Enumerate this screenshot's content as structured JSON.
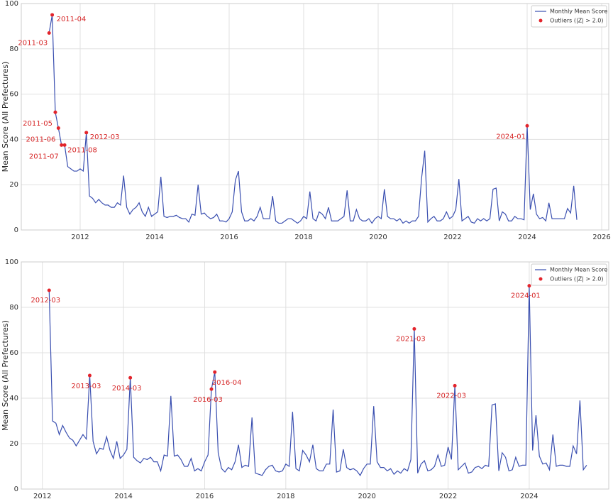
{
  "chart_data": [
    {
      "type": "line",
      "ylabel": "Mean Score (All Prefectures)",
      "xlim": [
        2010.42,
        2026.19
      ],
      "xticks": [
        2012,
        2014,
        2016,
        2018,
        2020,
        2022,
        2024,
        2026
      ],
      "ylim": [
        0,
        100
      ],
      "yticks": [
        0,
        20,
        40,
        60,
        80,
        100
      ],
      "grid": true,
      "legend": "upper right",
      "x": [
        "2011-03",
        "2011-04",
        "2011-05",
        "2011-06",
        "2011-07",
        "2011-08",
        "2011-09",
        "2011-10",
        "2011-11",
        "2011-12",
        "2012-01",
        "2012-02",
        "2012-03",
        "2012-04",
        "2012-05",
        "2012-06",
        "2012-07",
        "2012-08",
        "2012-09",
        "2012-10",
        "2012-11",
        "2012-12",
        "2013-01",
        "2013-02",
        "2013-03",
        "2013-04",
        "2013-05",
        "2013-06",
        "2013-07",
        "2013-08",
        "2013-09",
        "2013-10",
        "2013-11",
        "2013-12",
        "2014-01",
        "2014-02",
        "2014-03",
        "2014-04",
        "2014-05",
        "2014-06",
        "2014-07",
        "2014-08",
        "2014-09",
        "2014-10",
        "2014-11",
        "2014-12",
        "2015-01",
        "2015-02",
        "2015-03",
        "2015-04",
        "2015-05",
        "2015-06",
        "2015-07",
        "2015-08",
        "2015-09",
        "2015-10",
        "2015-11",
        "2015-12",
        "2016-01",
        "2016-02",
        "2016-03",
        "2016-04",
        "2016-05",
        "2016-06",
        "2016-07",
        "2016-08",
        "2016-09",
        "2016-10",
        "2016-11",
        "2016-12",
        "2017-01",
        "2017-02",
        "2017-03",
        "2017-04",
        "2017-05",
        "2017-06",
        "2017-07",
        "2017-08",
        "2017-09",
        "2017-10",
        "2017-11",
        "2017-12",
        "2018-01",
        "2018-02",
        "2018-03",
        "2018-04",
        "2018-05",
        "2018-06",
        "2018-07",
        "2018-08",
        "2018-09",
        "2018-10",
        "2018-11",
        "2018-12",
        "2019-01",
        "2019-02",
        "2019-03",
        "2019-04",
        "2019-05",
        "2019-06",
        "2019-07",
        "2019-08",
        "2019-09",
        "2019-10",
        "2019-11",
        "2019-12",
        "2020-01",
        "2020-02",
        "2020-03",
        "2020-04",
        "2020-05",
        "2020-06",
        "2020-07",
        "2020-08",
        "2020-09",
        "2020-10",
        "2020-11",
        "2020-12",
        "2021-01",
        "2021-02",
        "2021-03",
        "2021-04",
        "2021-05",
        "2021-06",
        "2021-07",
        "2021-08",
        "2021-09",
        "2021-10",
        "2021-11",
        "2021-12",
        "2022-01",
        "2022-02",
        "2022-03",
        "2022-04",
        "2022-05",
        "2022-06",
        "2022-07",
        "2022-08",
        "2022-09",
        "2022-10",
        "2022-11",
        "2022-12",
        "2023-01",
        "2023-02",
        "2023-03",
        "2023-04",
        "2023-05",
        "2023-06",
        "2023-07",
        "2023-08",
        "2023-09",
        "2023-10",
        "2023-11",
        "2023-12",
        "2024-01",
        "2024-02",
        "2024-03",
        "2024-04",
        "2024-05",
        "2024-06",
        "2024-07",
        "2024-08",
        "2024-09",
        "2024-10",
        "2024-11",
        "2024-12",
        "2025-01",
        "2025-02",
        "2025-03",
        "2025-04",
        "2025-05"
      ],
      "series": [
        {
          "name": "Monthly Mean Score",
          "color": "#3a4fb0",
          "values": [
            87,
            95,
            52,
            45,
            37.5,
            37.5,
            28,
            27,
            26,
            26,
            27,
            26,
            43,
            15,
            14,
            12,
            13.5,
            12,
            11,
            11,
            10,
            10,
            12,
            11,
            24,
            10,
            7,
            9,
            10,
            12,
            8,
            6,
            10,
            6,
            7,
            8,
            23.5,
            6,
            5.5,
            6,
            6,
            6.5,
            5.5,
            5,
            5,
            3.5,
            7,
            6.5,
            20,
            7,
            7.5,
            6,
            5,
            5.5,
            7,
            4,
            4,
            3.5,
            5,
            8,
            22,
            26,
            8,
            4,
            4,
            5,
            4,
            6,
            10,
            5,
            5,
            5,
            15,
            4,
            3,
            3,
            4,
            5,
            5,
            4,
            3,
            4,
            6,
            5,
            17,
            5,
            4,
            8,
            7,
            5,
            10,
            4,
            4,
            4,
            5,
            6,
            17.5,
            4,
            4,
            9,
            5,
            4,
            4,
            5,
            3,
            5,
            6,
            5,
            18,
            6,
            5,
            5,
            4,
            5,
            3,
            4,
            3,
            4,
            4,
            6,
            23,
            35,
            3.5,
            5,
            6,
            4,
            4,
            5,
            8,
            5,
            6,
            9,
            22.5,
            4,
            5,
            6,
            3.5,
            3,
            5,
            4,
            5,
            4,
            5,
            18,
            18.5,
            4,
            8,
            7,
            4,
            4,
            6,
            5,
            5,
            4.5,
            46,
            9,
            16,
            7,
            5,
            5.5,
            4,
            12,
            5,
            5,
            5,
            5,
            5,
            9.5,
            7.5,
            19.5,
            4.5
          ]
        },
        {
          "name": "Outliers (|Z| > 2.0)",
          "color": "#e3242b",
          "marker": "dot",
          "x": [
            "2011-03",
            "2011-04",
            "2011-05",
            "2011-06",
            "2011-07",
            "2011-08",
            "2012-03",
            "2024-01"
          ],
          "values": [
            87,
            95,
            52,
            45,
            37.5,
            37.5,
            43,
            46
          ]
        }
      ]
    },
    {
      "type": "line",
      "ylabel": "Mean Score (All Prefectures)",
      "xlim": [
        2011.48,
        2025.96
      ],
      "xticks": [
        2012,
        2014,
        2016,
        2018,
        2020,
        2022,
        2024
      ],
      "ylim": [
        0,
        100
      ],
      "yticks": [
        0,
        20,
        40,
        60,
        80,
        100
      ],
      "grid": true,
      "legend": "upper right",
      "x": [
        "2012-03",
        "2012-04",
        "2012-05",
        "2012-06",
        "2012-07",
        "2012-08",
        "2012-09",
        "2012-10",
        "2012-11",
        "2012-12",
        "2013-01",
        "2013-02",
        "2013-03",
        "2013-04",
        "2013-05",
        "2013-06",
        "2013-07",
        "2013-08",
        "2013-09",
        "2013-10",
        "2013-11",
        "2013-12",
        "2014-01",
        "2014-02",
        "2014-03",
        "2014-04",
        "2014-05",
        "2014-06",
        "2014-07",
        "2014-08",
        "2014-09",
        "2014-10",
        "2014-11",
        "2014-12",
        "2015-01",
        "2015-02",
        "2015-03",
        "2015-04",
        "2015-05",
        "2015-06",
        "2015-07",
        "2015-08",
        "2015-09",
        "2015-10",
        "2015-11",
        "2015-12",
        "2016-01",
        "2016-02",
        "2016-03",
        "2016-04",
        "2016-05",
        "2016-06",
        "2016-07",
        "2016-08",
        "2016-09",
        "2016-10",
        "2016-11",
        "2016-12",
        "2017-01",
        "2017-02",
        "2017-03",
        "2017-04",
        "2017-05",
        "2017-06",
        "2017-07",
        "2017-08",
        "2017-09",
        "2017-10",
        "2017-11",
        "2017-12",
        "2018-01",
        "2018-02",
        "2018-03",
        "2018-04",
        "2018-05",
        "2018-06",
        "2018-07",
        "2018-08",
        "2018-09",
        "2018-10",
        "2018-11",
        "2018-12",
        "2019-01",
        "2019-02",
        "2019-03",
        "2019-04",
        "2019-05",
        "2019-06",
        "2019-07",
        "2019-08",
        "2019-09",
        "2019-10",
        "2019-11",
        "2019-12",
        "2020-01",
        "2020-02",
        "2020-03",
        "2020-04",
        "2020-05",
        "2020-06",
        "2020-07",
        "2020-08",
        "2020-09",
        "2020-10",
        "2020-11",
        "2020-12",
        "2021-01",
        "2021-02",
        "2021-03",
        "2021-04",
        "2021-05",
        "2021-06",
        "2021-07",
        "2021-08",
        "2021-09",
        "2021-10",
        "2021-11",
        "2021-12",
        "2022-01",
        "2022-02",
        "2022-03",
        "2022-04",
        "2022-05",
        "2022-06",
        "2022-07",
        "2022-08",
        "2022-09",
        "2022-10",
        "2022-11",
        "2022-12",
        "2023-01",
        "2023-02",
        "2023-03",
        "2023-04",
        "2023-05",
        "2023-06",
        "2023-07",
        "2023-08",
        "2023-09",
        "2023-10",
        "2023-11",
        "2023-12",
        "2024-01",
        "2024-02",
        "2024-03",
        "2024-04",
        "2024-05",
        "2024-06",
        "2024-07",
        "2024-08",
        "2024-09",
        "2024-10",
        "2024-11",
        "2024-12",
        "2025-01",
        "2025-02",
        "2025-03",
        "2025-04",
        "2025-05",
        "2025-06"
      ],
      "series": [
        {
          "name": "Monthly Mean Score",
          "color": "#3a4fb0",
          "values": [
            87.5,
            30,
            29,
            24,
            28,
            25,
            22.5,
            21.5,
            19,
            21.5,
            24,
            22,
            50,
            21,
            15.5,
            18,
            17.5,
            23,
            17,
            13.5,
            21,
            13.5,
            15,
            17.5,
            49,
            14,
            12.5,
            11.5,
            13.5,
            13,
            14,
            12,
            12,
            8,
            15,
            14.5,
            41,
            14.5,
            15,
            13,
            10,
            10,
            13.5,
            8,
            9,
            8,
            12,
            15,
            44,
            51.5,
            16,
            9,
            7.5,
            9.5,
            8.5,
            12,
            19.5,
            9.5,
            10.5,
            10,
            31.5,
            7,
            6.5,
            6,
            8.5,
            10,
            10.5,
            8,
            7.5,
            8,
            11,
            10,
            34,
            9,
            8,
            17,
            15,
            12,
            19.5,
            9,
            8,
            8,
            11,
            11,
            35,
            7.5,
            8,
            17.5,
            9.5,
            8.5,
            9,
            8,
            6,
            9,
            11,
            11,
            36.5,
            12,
            9.5,
            9.5,
            8,
            9,
            6.5,
            8,
            7,
            9,
            8,
            13,
            70.5,
            7,
            11,
            12.5,
            8,
            8.5,
            10,
            15,
            10,
            10.5,
            18.5,
            13,
            45.5,
            8.5,
            10,
            11.5,
            7,
            7.5,
            9.5,
            10,
            9,
            10.5,
            10,
            37,
            37.5,
            8,
            16,
            14,
            8,
            8.5,
            14,
            10,
            10.5,
            10.5,
            89.5,
            17,
            32.5,
            14.5,
            11,
            11.5,
            8.5,
            24,
            10,
            10.5,
            10.5,
            10,
            10,
            19,
            15.5,
            39,
            8.5,
            10.5
          ]
        },
        {
          "name": "Outliers (|Z| > 2.0)",
          "color": "#e3242b",
          "marker": "dot",
          "x": [
            "2012-03",
            "2013-03",
            "2014-03",
            "2016-03",
            "2016-04",
            "2021-03",
            "2022-03",
            "2024-01"
          ],
          "values": [
            87.5,
            50,
            49,
            44,
            51.5,
            70.5,
            45.5,
            89.5
          ]
        }
      ]
    }
  ]
}
